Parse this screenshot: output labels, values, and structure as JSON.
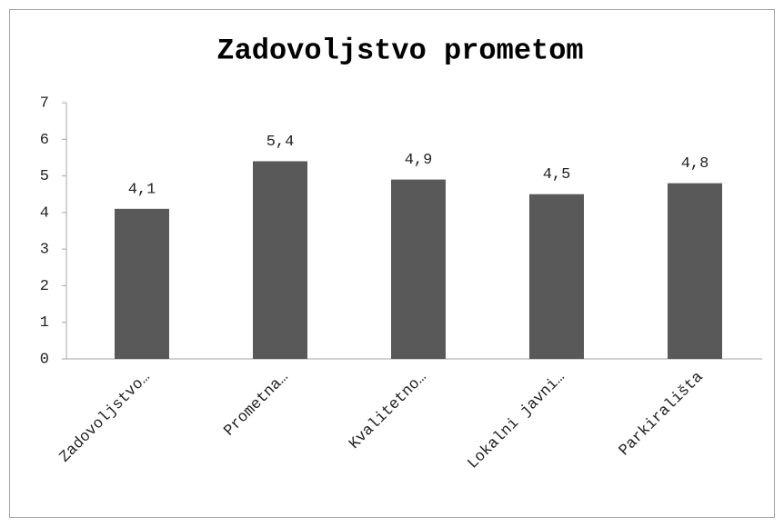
{
  "chart_data": {
    "type": "bar",
    "title": "Zadovoljstvo prometom",
    "categories": [
      "Zadovoljstvo…",
      "Prometna…",
      "Kvalitetno…",
      "Lokalni javni…",
      "Parkirališta"
    ],
    "values": [
      4.1,
      5.4,
      4.9,
      4.5,
      4.8
    ],
    "value_labels": [
      "4,1",
      "5,4",
      "4,9",
      "4,5",
      "4,8"
    ],
    "color": "#595959",
    "ylim": [
      0,
      7
    ],
    "yticks": [
      0,
      1,
      2,
      3,
      4,
      5,
      6,
      7
    ],
    "grid": false
  }
}
